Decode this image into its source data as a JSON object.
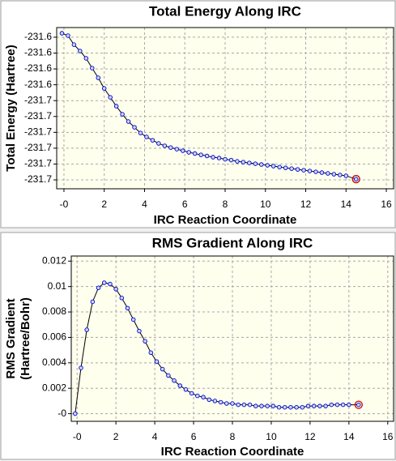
{
  "chart_data": [
    {
      "type": "line",
      "title": "Total Energy Along IRC",
      "x_label": "IRC Reaction Coordinate",
      "y_label": [
        "Total Energy (Hartree)"
      ],
      "color": "#0000c8",
      "grid": true,
      "x": [
        -0.1,
        0.2,
        0.5,
        0.8,
        1.1,
        1.4,
        1.7,
        2.0,
        2.3,
        2.6,
        2.9,
        3.2,
        3.5,
        3.8,
        4.1,
        4.4,
        4.7,
        5.0,
        5.3,
        5.6,
        5.9,
        6.2,
        6.5,
        6.8,
        7.1,
        7.4,
        7.7,
        8.0,
        8.3,
        8.6,
        8.9,
        9.2,
        9.5,
        9.8,
        10.1,
        10.4,
        10.7,
        11.0,
        11.3,
        11.6,
        11.9,
        12.2,
        12.5,
        12.8,
        13.1,
        13.4,
        13.7,
        14.0,
        14.5
      ],
      "values": [
        -231.6125,
        -231.614,
        -231.6197,
        -231.6237,
        -231.6283,
        -231.6345,
        -231.6406,
        -231.6473,
        -231.6529,
        -231.6585,
        -231.6636,
        -231.6682,
        -231.6718,
        -231.6754,
        -231.6779,
        -231.68,
        -231.682,
        -231.6835,
        -231.6846,
        -231.6856,
        -231.6866,
        -231.6876,
        -231.6884,
        -231.6892,
        -231.6899,
        -231.6907,
        -231.6912,
        -231.692,
        -231.6925,
        -231.6933,
        -231.6938,
        -231.6943,
        -231.6948,
        -231.6953,
        -231.6958,
        -231.6963,
        -231.6969,
        -231.6974,
        -231.6979,
        -231.6984,
        -231.6989,
        -231.6994,
        -231.6999,
        -231.7004,
        -231.7009,
        -231.7014,
        -231.7019,
        -231.7024,
        -231.7045
      ],
      "xlim": [
        -0.36,
        16.36
      ],
      "xticks": [
        {
          "value": 0,
          "label": "-0"
        },
        2,
        4,
        6,
        8,
        10,
        12,
        14,
        16
      ],
      "ylim": [
        -231.7106,
        -231.6089
      ],
      "yticks": [
        {
          "value": -231.615,
          "label": "-231.6"
        },
        {
          "value": -231.625,
          "label": "-231.6"
        },
        {
          "value": -231.635,
          "label": "-231.6"
        },
        {
          "value": -231.645,
          "label": "-231.6"
        },
        {
          "value": -231.655,
          "label": "-231.7"
        },
        {
          "value": -231.665,
          "label": "-231.7"
        },
        {
          "value": -231.675,
          "label": "-231.7"
        },
        {
          "value": -231.685,
          "label": "-231.7"
        },
        {
          "value": -231.695,
          "label": "-231.7"
        },
        {
          "value": -231.705,
          "label": "-231.7"
        }
      ]
    },
    {
      "type": "line",
      "title": "RMS Gradient Along IRC",
      "x_label": "IRC Reaction Coordinate",
      "y_label": [
        "RMS Gradient",
        "(Hartree/Bohr)"
      ],
      "color": "#0000c8",
      "grid": true,
      "x": [
        -0.1,
        0.2,
        0.5,
        0.8,
        1.1,
        1.4,
        1.7,
        2.0,
        2.3,
        2.6,
        2.9,
        3.2,
        3.5,
        3.8,
        4.1,
        4.4,
        4.7,
        5.0,
        5.3,
        5.6,
        5.9,
        6.2,
        6.5,
        6.8,
        7.1,
        7.4,
        7.7,
        8.0,
        8.3,
        8.6,
        8.9,
        9.2,
        9.5,
        9.8,
        10.1,
        10.4,
        10.7,
        11.0,
        11.3,
        11.6,
        11.9,
        12.2,
        12.5,
        12.8,
        13.1,
        13.4,
        13.7,
        14.0,
        14.5
      ],
      "values": [
        0,
        0.0036,
        0.0066,
        0.0088,
        0.0099,
        0.0103,
        0.0102,
        0.0098,
        0.0091,
        0.0083,
        0.0074,
        0.0065,
        0.0057,
        0.0048,
        0.0041,
        0.0035,
        0.003,
        0.0026,
        0.0022,
        0.0019,
        0.0016,
        0.0014,
        0.0013,
        0.0011,
        0.001,
        0.0009,
        0.0008,
        0.0008,
        0.0007,
        0.0007,
        0.0007,
        0.0006,
        0.0006,
        0.0006,
        0.0006,
        0.0005,
        0.0005,
        0.0005,
        0.0005,
        0.0005,
        0.0006,
        0.0006,
        0.0006,
        0.0006,
        0.0007,
        0.0007,
        0.0007,
        0.0007,
        0.0007
      ],
      "xlim": [
        -0.3,
        16.3
      ],
      "xticks": [
        {
          "value": 0,
          "label": "-0"
        },
        2,
        4,
        6,
        8,
        10,
        12,
        14,
        16
      ],
      "ylim": [
        -0.0006,
        0.0124
      ],
      "yticks": [
        {
          "value": 0,
          "label": "-0"
        },
        0.002,
        0.004,
        0.006,
        0.008,
        0.01,
        0.012
      ]
    }
  ]
}
